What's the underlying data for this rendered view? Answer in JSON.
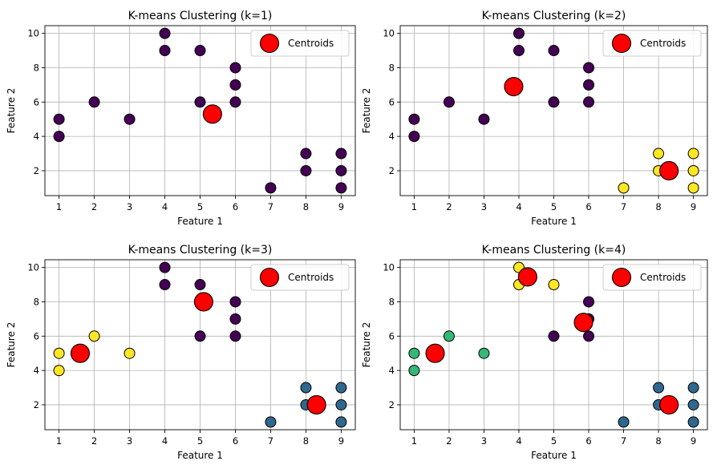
{
  "colors": {
    "c0": "#440154",
    "c1": "#30678d",
    "c2": "#35b778",
    "c3": "#fde724",
    "centroid": "#ff0000",
    "grid": "#b0b0b0"
  },
  "chart_data": [
    {
      "type": "scatter",
      "title": "K-means Clustering (k=1)",
      "xlabel": "Feature 1",
      "ylabel": "Feature 2",
      "xlim": [
        0.6,
        9.4
      ],
      "ylim": [
        0.55,
        10.45
      ],
      "xticks": [
        1,
        2,
        3,
        4,
        5,
        6,
        7,
        8,
        9
      ],
      "yticks": [
        2,
        4,
        6,
        8,
        10
      ],
      "grid": true,
      "legend": "top-right",
      "legend_label": "Centroids",
      "points": [
        {
          "x": 1,
          "y": 5,
          "c": "c0"
        },
        {
          "x": 1,
          "y": 4,
          "c": "c0"
        },
        {
          "x": 2,
          "y": 6,
          "c": "c0"
        },
        {
          "x": 3,
          "y": 5,
          "c": "c0"
        },
        {
          "x": 4,
          "y": 10,
          "c": "c0"
        },
        {
          "x": 4,
          "y": 9,
          "c": "c0"
        },
        {
          "x": 5,
          "y": 9,
          "c": "c0"
        },
        {
          "x": 5,
          "y": 6,
          "c": "c0"
        },
        {
          "x": 6,
          "y": 8,
          "c": "c0"
        },
        {
          "x": 6,
          "y": 7,
          "c": "c0"
        },
        {
          "x": 6,
          "y": 6,
          "c": "c0"
        },
        {
          "x": 7,
          "y": 1,
          "c": "c0"
        },
        {
          "x": 8,
          "y": 3,
          "c": "c0"
        },
        {
          "x": 8,
          "y": 2,
          "c": "c0"
        },
        {
          "x": 9,
          "y": 3,
          "c": "c0"
        },
        {
          "x": 9,
          "y": 2,
          "c": "c0"
        },
        {
          "x": 9,
          "y": 1,
          "c": "c0"
        }
      ],
      "centroids": [
        {
          "x": 5.35,
          "y": 5.3
        }
      ]
    },
    {
      "type": "scatter",
      "title": "K-means Clustering (k=2)",
      "xlabel": "Feature 1",
      "ylabel": "Feature 2",
      "xlim": [
        0.6,
        9.4
      ],
      "ylim": [
        0.55,
        10.45
      ],
      "xticks": [
        1,
        2,
        3,
        4,
        5,
        6,
        7,
        8,
        9
      ],
      "yticks": [
        2,
        4,
        6,
        8,
        10
      ],
      "grid": true,
      "legend": "top-right",
      "legend_label": "Centroids",
      "points": [
        {
          "x": 1,
          "y": 5,
          "c": "c0"
        },
        {
          "x": 1,
          "y": 4,
          "c": "c0"
        },
        {
          "x": 2,
          "y": 6,
          "c": "c0"
        },
        {
          "x": 3,
          "y": 5,
          "c": "c0"
        },
        {
          "x": 4,
          "y": 10,
          "c": "c0"
        },
        {
          "x": 4,
          "y": 9,
          "c": "c0"
        },
        {
          "x": 5,
          "y": 9,
          "c": "c0"
        },
        {
          "x": 5,
          "y": 6,
          "c": "c0"
        },
        {
          "x": 6,
          "y": 8,
          "c": "c0"
        },
        {
          "x": 6,
          "y": 7,
          "c": "c0"
        },
        {
          "x": 6,
          "y": 6,
          "c": "c0"
        },
        {
          "x": 7,
          "y": 1,
          "c": "c3"
        },
        {
          "x": 8,
          "y": 3,
          "c": "c3"
        },
        {
          "x": 8,
          "y": 2,
          "c": "c3"
        },
        {
          "x": 9,
          "y": 3,
          "c": "c3"
        },
        {
          "x": 9,
          "y": 2,
          "c": "c3"
        },
        {
          "x": 9,
          "y": 1,
          "c": "c3"
        }
      ],
      "centroids": [
        {
          "x": 3.85,
          "y": 6.9
        },
        {
          "x": 8.3,
          "y": 2.0
        }
      ]
    },
    {
      "type": "scatter",
      "title": "K-means Clustering (k=3)",
      "xlabel": "Feature 1",
      "ylabel": "Feature 2",
      "xlim": [
        0.6,
        9.4
      ],
      "ylim": [
        0.55,
        10.45
      ],
      "xticks": [
        1,
        2,
        3,
        4,
        5,
        6,
        7,
        8,
        9
      ],
      "yticks": [
        2,
        4,
        6,
        8,
        10
      ],
      "grid": true,
      "legend": "top-right",
      "legend_label": "Centroids",
      "points": [
        {
          "x": 1,
          "y": 5,
          "c": "c3"
        },
        {
          "x": 1,
          "y": 4,
          "c": "c3"
        },
        {
          "x": 2,
          "y": 6,
          "c": "c3"
        },
        {
          "x": 3,
          "y": 5,
          "c": "c3"
        },
        {
          "x": 4,
          "y": 10,
          "c": "c0"
        },
        {
          "x": 4,
          "y": 9,
          "c": "c0"
        },
        {
          "x": 5,
          "y": 9,
          "c": "c0"
        },
        {
          "x": 5,
          "y": 6,
          "c": "c0"
        },
        {
          "x": 6,
          "y": 8,
          "c": "c0"
        },
        {
          "x": 6,
          "y": 7,
          "c": "c0"
        },
        {
          "x": 6,
          "y": 6,
          "c": "c0"
        },
        {
          "x": 7,
          "y": 1,
          "c": "c1"
        },
        {
          "x": 8,
          "y": 3,
          "c": "c1"
        },
        {
          "x": 8,
          "y": 2,
          "c": "c1"
        },
        {
          "x": 9,
          "y": 3,
          "c": "c1"
        },
        {
          "x": 9,
          "y": 2,
          "c": "c1"
        },
        {
          "x": 9,
          "y": 1,
          "c": "c1"
        }
      ],
      "centroids": [
        {
          "x": 1.6,
          "y": 5.0
        },
        {
          "x": 5.1,
          "y": 8.0
        },
        {
          "x": 8.3,
          "y": 2.0
        }
      ]
    },
    {
      "type": "scatter",
      "title": "K-means Clustering (k=4)",
      "xlabel": "Feature 1",
      "ylabel": "Feature 2",
      "xlim": [
        0.6,
        9.4
      ],
      "ylim": [
        0.55,
        10.45
      ],
      "xticks": [
        1,
        2,
        3,
        4,
        5,
        6,
        7,
        8,
        9
      ],
      "yticks": [
        2,
        4,
        6,
        8,
        10
      ],
      "grid": true,
      "legend": "top-right",
      "legend_label": "Centroids",
      "points": [
        {
          "x": 1,
          "y": 5,
          "c": "c2"
        },
        {
          "x": 1,
          "y": 4,
          "c": "c2"
        },
        {
          "x": 2,
          "y": 6,
          "c": "c2"
        },
        {
          "x": 3,
          "y": 5,
          "c": "c2"
        },
        {
          "x": 4,
          "y": 10,
          "c": "c3"
        },
        {
          "x": 4,
          "y": 9,
          "c": "c3"
        },
        {
          "x": 5,
          "y": 9,
          "c": "c3"
        },
        {
          "x": 5,
          "y": 6,
          "c": "c0"
        },
        {
          "x": 6,
          "y": 8,
          "c": "c0"
        },
        {
          "x": 6,
          "y": 7,
          "c": "c0"
        },
        {
          "x": 6,
          "y": 6,
          "c": "c0"
        },
        {
          "x": 7,
          "y": 1,
          "c": "c1"
        },
        {
          "x": 8,
          "y": 3,
          "c": "c1"
        },
        {
          "x": 8,
          "y": 2,
          "c": "c1"
        },
        {
          "x": 9,
          "y": 3,
          "c": "c1"
        },
        {
          "x": 9,
          "y": 2,
          "c": "c1"
        },
        {
          "x": 9,
          "y": 1,
          "c": "c1"
        }
      ],
      "centroids": [
        {
          "x": 1.6,
          "y": 5.0
        },
        {
          "x": 4.25,
          "y": 9.45
        },
        {
          "x": 5.85,
          "y": 6.8
        },
        {
          "x": 8.3,
          "y": 2.0
        }
      ]
    }
  ]
}
